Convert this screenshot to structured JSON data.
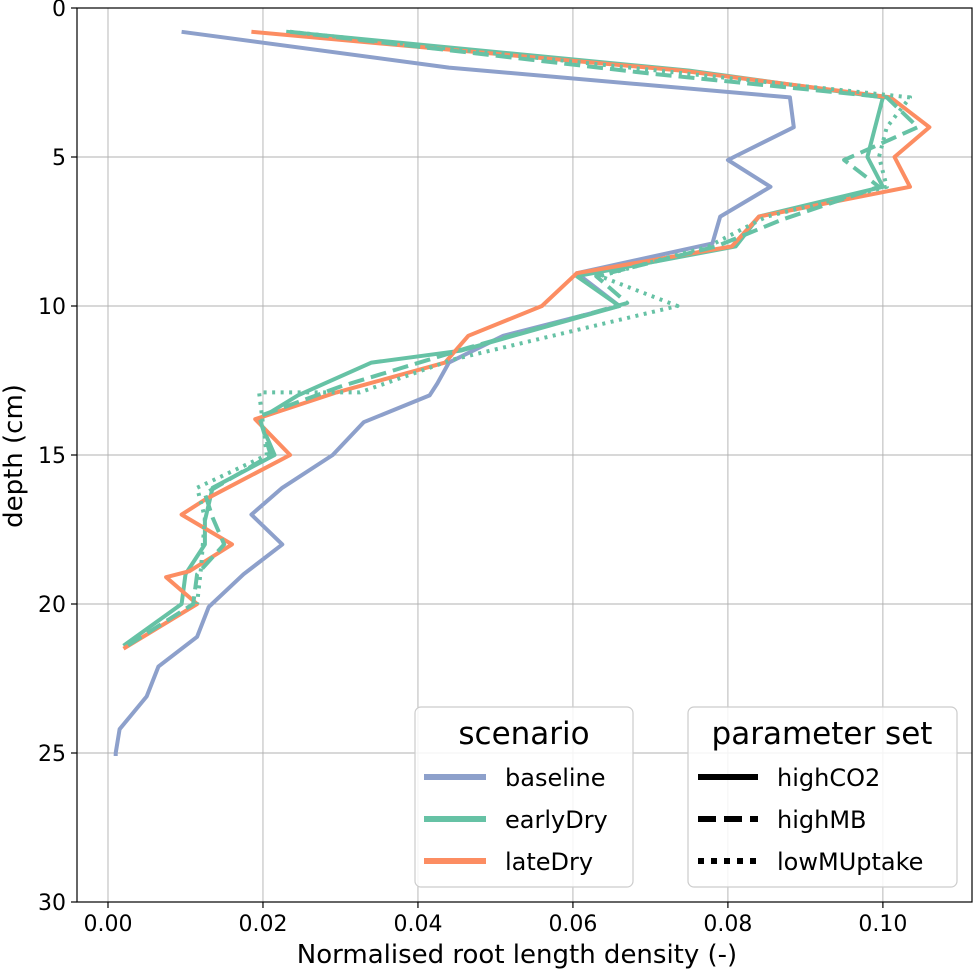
{
  "chart_data": {
    "type": "line",
    "orientation": "depth-profile",
    "title": "",
    "xlabel": "Normalised root length density (-)",
    "ylabel": "depth (cm)",
    "xlim": [
      -0.004,
      0.1115
    ],
    "ylim": [
      0,
      30
    ],
    "y_inverted": true,
    "grid": true,
    "x_ticks": [
      0.0,
      0.02,
      0.04,
      0.06,
      0.08,
      0.1
    ],
    "x_tick_labels": [
      "0.00",
      "0.02",
      "0.04",
      "0.06",
      "0.08",
      "0.10"
    ],
    "y_ticks": [
      0,
      5,
      10,
      15,
      20,
      25,
      30
    ],
    "y_tick_labels": [
      "0",
      "5",
      "10",
      "15",
      "20",
      "25",
      "30"
    ],
    "scenario_legend": {
      "title": "scenario",
      "placement": "lower-center",
      "entries": [
        {
          "label": "baseline",
          "color": "#8da0cb"
        },
        {
          "label": "earlyDry",
          "color": "#66c2a5"
        },
        {
          "label": "lateDry",
          "color": "#fc8d62"
        }
      ]
    },
    "parameter_legend": {
      "title": "parameter set",
      "placement": "lower-right",
      "entries": [
        {
          "label": "highCO2",
          "style": "solid"
        },
        {
          "label": "highMB",
          "style": "dashed"
        },
        {
          "label": "lowMUptake",
          "style": "dotted"
        }
      ]
    },
    "series": [
      {
        "name": "baseline",
        "parameter_set": "highCO2",
        "color": "#8da0cb",
        "style": "solid",
        "x": [
          0.0095,
          0.044,
          0.088,
          0.0885,
          0.08,
          0.0855,
          0.079,
          0.078,
          0.0605,
          0.066,
          0.051,
          0.044,
          0.0425,
          0.0415,
          0.033,
          0.029,
          0.0225,
          0.0185,
          0.0225,
          0.0175,
          0.013,
          0.0115,
          0.0065,
          0.005,
          0.0015,
          0.001,
          0.001
        ],
        "y": [
          0.8,
          2.0,
          3.0,
          4.0,
          5.1,
          6.0,
          7.0,
          7.9,
          8.9,
          10.0,
          11.0,
          11.9,
          12.6,
          13.0,
          13.9,
          15.0,
          16.1,
          17.0,
          18.0,
          19.0,
          20.1,
          21.1,
          22.1,
          23.1,
          24.2,
          25.0,
          25.1
        ]
      },
      {
        "name": "earlyDry",
        "parameter_set": "highCO2",
        "color": "#66c2a5",
        "style": "solid",
        "x": [
          0.023,
          0.075,
          0.1,
          0.099,
          0.098,
          0.1,
          0.084,
          0.081,
          0.0605,
          0.066,
          0.0455,
          0.034,
          0.0245,
          0.0195,
          0.0215,
          0.0135,
          0.0125,
          0.0125,
          0.01,
          0.0095,
          0.002
        ],
        "y": [
          0.8,
          2.1,
          3.0,
          4.0,
          5.0,
          6.0,
          7.0,
          8.0,
          9.0,
          10.0,
          11.5,
          11.9,
          13.0,
          13.8,
          15.0,
          16.1,
          17.2,
          18.0,
          19.0,
          20.0,
          21.4
        ]
      },
      {
        "name": "lateDry",
        "parameter_set": "highCO2",
        "color": "#fc8d62",
        "style": "solid",
        "x": [
          0.0185,
          0.074,
          0.101,
          0.106,
          0.1015,
          0.1035,
          0.084,
          0.0805,
          0.0605,
          0.056,
          0.0465,
          0.0435,
          0.0295,
          0.019,
          0.0235,
          0.0125,
          0.0095,
          0.016,
          0.0105,
          0.0075,
          0.0115,
          0.002
        ],
        "y": [
          0.8,
          2.1,
          3.0,
          4.0,
          5.0,
          6.0,
          7.0,
          8.0,
          8.9,
          10.0,
          11.0,
          11.9,
          12.9,
          13.8,
          15.0,
          16.5,
          17.0,
          18.0,
          18.9,
          19.1,
          20.0,
          21.5
        ]
      },
      {
        "name": "earlyDry",
        "parameter_set": "highMB",
        "color": "#66c2a5",
        "style": "dashed",
        "x": [
          0.0235,
          0.07,
          0.1005,
          0.1045,
          0.095,
          0.0995,
          0.087,
          0.0785,
          0.063,
          0.067,
          0.0465,
          0.03,
          0.0195,
          0.021,
          0.0125,
          0.0135,
          0.015,
          0.0115,
          0.011,
          0.0025
        ],
        "y": [
          0.8,
          2.2,
          3.0,
          4.0,
          5.1,
          6.0,
          7.1,
          8.0,
          9.0,
          9.9,
          11.4,
          12.7,
          13.7,
          15.0,
          16.3,
          17.1,
          18.0,
          19.0,
          20.0,
          21.4
        ]
      },
      {
        "name": "earlyDry",
        "parameter_set": "lowMUptake",
        "color": "#66c2a5",
        "style": "dotted",
        "x": [
          0.0235,
          0.071,
          0.1035,
          0.1005,
          0.0995,
          0.1005,
          0.085,
          0.0775,
          0.0635,
          0.0735,
          0.0445,
          0.0325,
          0.0195,
          0.0205,
          0.0115,
          0.0125,
          0.012,
          0.0115
        ],
        "y": [
          0.8,
          2.1,
          3.0,
          4.0,
          5.0,
          6.0,
          7.0,
          8.0,
          9.0,
          10.0,
          11.8,
          12.9,
          12.9,
          15.0,
          16.1,
          17.1,
          18.8,
          20.0
        ]
      }
    ]
  }
}
